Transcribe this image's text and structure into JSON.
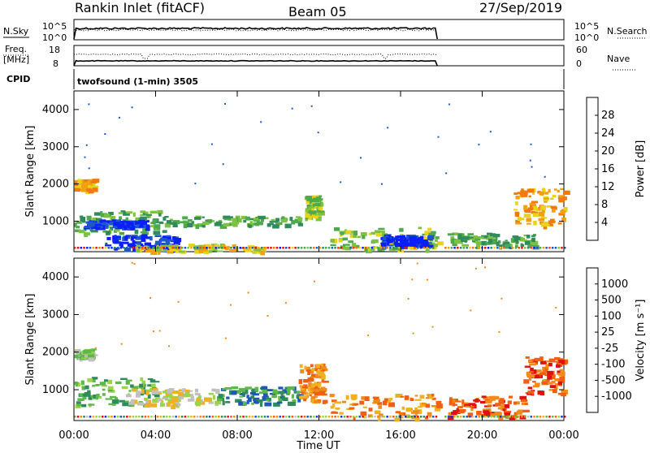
{
  "header": {
    "station": "Rankin Inlet (fitACF)",
    "beam": "Beam 05",
    "date": "27/Sep/2019"
  },
  "control": {
    "nsky_label": "N.Sky",
    "nsearch_label": "N.Search",
    "freq_label_1": "Freq.",
    "freq_label_2": "[MHz]",
    "nave_label": "Nave",
    "cpid_label": "CPID",
    "cpid_value": "twofsound (1-min) 3505",
    "noise_ticks_left": [
      "10^5",
      "10^0"
    ],
    "noise_ticks_right": [
      "10^5",
      "10^0"
    ],
    "freq_ticks": [
      "18",
      "8"
    ],
    "nave_ticks": [
      "60",
      "0"
    ]
  },
  "colorbars": {
    "power": {
      "label": "Power [dB]",
      "ticks": [
        "28",
        "24",
        "20",
        "16",
        "12",
        "8",
        "4"
      ],
      "colors": [
        "#0a1eff",
        "#1d57c8",
        "#2f8a5c",
        "#4ea84c",
        "#7cc240",
        "#e8d21a",
        "#f0a010",
        "#f07a10",
        "#f04a10",
        "#e01010"
      ]
    },
    "velocity": {
      "label": "Velocity [m s⁻¹]",
      "ticks": [
        "1000",
        "500",
        "100",
        "25",
        "-25",
        "-100",
        "-500",
        "-1000"
      ],
      "colors": [
        "#1a2ee0",
        "#1f57b8",
        "#2f8a5c",
        "#5cb848",
        "#9ad44a",
        "#c0c0c0",
        "#f0b020",
        "#f08a18",
        "#f06010",
        "#e01010"
      ]
    }
  },
  "chart_data": [
    {
      "type": "heatmap",
      "title": "",
      "ylabel": "Slant Range [km]",
      "xlabel": "",
      "ylim": [
        180,
        4500
      ],
      "x_ticks": [
        "00:00",
        "04:00",
        "08:00",
        "12:00",
        "16:00",
        "20:00",
        "00:00"
      ],
      "y_ticks": [
        1000,
        2000,
        3000,
        4000
      ],
      "parameter": "power",
      "x_unit": "hours UT",
      "patches": [
        {
          "t0": 0.0,
          "t1": 0.9,
          "r0": 1850,
          "r1": 2150,
          "level": 6
        },
        {
          "t0": 0.0,
          "t1": 4.5,
          "r0": 700,
          "r1": 1300,
          "level": 3
        },
        {
          "t0": 0.5,
          "t1": 3.5,
          "r0": 850,
          "r1": 1050,
          "level": 0
        },
        {
          "t0": 1.5,
          "t1": 5.0,
          "r0": 250,
          "r1": 650,
          "level": 0
        },
        {
          "t0": 3.0,
          "t1": 9.5,
          "r0": 200,
          "r1": 400,
          "level": 5
        },
        {
          "t0": 4.5,
          "t1": 11.0,
          "r0": 900,
          "r1": 1150,
          "level": 3
        },
        {
          "t0": 11.3,
          "t1": 12.0,
          "r0": 1100,
          "r1": 1700,
          "level": 4
        },
        {
          "t0": 12.5,
          "t1": 17.8,
          "r0": 250,
          "r1": 850,
          "level": 4
        },
        {
          "t0": 15.0,
          "t1": 17.5,
          "r0": 350,
          "r1": 650,
          "level": 0
        },
        {
          "t0": 18.3,
          "t1": 22.5,
          "r0": 350,
          "r1": 700,
          "level": 3
        },
        {
          "t0": 21.5,
          "t1": 24.0,
          "r0": 900,
          "r1": 1900,
          "level": 6
        }
      ]
    },
    {
      "type": "heatmap",
      "title": "",
      "ylabel": "Slant Range [km]",
      "xlabel": "Time UT",
      "ylim": [
        180,
        4500
      ],
      "x_ticks": [
        "00:00",
        "04:00",
        "08:00",
        "12:00",
        "16:00",
        "20:00",
        "00:00"
      ],
      "y_ticks": [
        1000,
        2000,
        3000,
        4000
      ],
      "parameter": "velocity",
      "x_unit": "hours UT",
      "patches": [
        {
          "t0": 0.0,
          "t1": 0.9,
          "r0": 1850,
          "r1": 2100,
          "level": 4
        },
        {
          "t0": 0.0,
          "t1": 4.0,
          "r0": 600,
          "r1": 1350,
          "level": 3
        },
        {
          "t0": 2.5,
          "t1": 7.0,
          "r0": 600,
          "r1": 1050,
          "level": 5
        },
        {
          "t0": 7.0,
          "t1": 11.0,
          "r0": 650,
          "r1": 1100,
          "level": 2
        },
        {
          "t0": 11.0,
          "t1": 12.2,
          "r0": 700,
          "r1": 1700,
          "level": 7
        },
        {
          "t0": 12.5,
          "t1": 17.8,
          "r0": 250,
          "r1": 900,
          "level": 7
        },
        {
          "t0": 18.3,
          "t1": 22.0,
          "r0": 300,
          "r1": 850,
          "level": 8
        },
        {
          "t0": 22.0,
          "t1": 24.0,
          "r0": 900,
          "r1": 1900,
          "level": 8
        }
      ]
    }
  ]
}
